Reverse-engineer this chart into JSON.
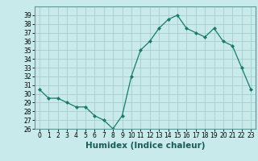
{
  "x": [
    0,
    1,
    2,
    3,
    4,
    5,
    6,
    7,
    8,
    9,
    10,
    11,
    12,
    13,
    14,
    15,
    16,
    17,
    18,
    19,
    20,
    21,
    22,
    23
  ],
  "y": [
    30.5,
    29.5,
    29.5,
    29.0,
    28.5,
    28.5,
    27.5,
    27.0,
    26.0,
    27.5,
    32.0,
    35.0,
    36.0,
    37.5,
    38.5,
    39.0,
    37.5,
    37.0,
    36.5,
    37.5,
    36.0,
    35.5,
    33.0,
    30.5
  ],
  "xlabel": "Humidex (Indice chaleur)",
  "xlim": [
    -0.5,
    23.5
  ],
  "ylim": [
    26,
    40
  ],
  "yticks": [
    26,
    27,
    28,
    29,
    30,
    31,
    32,
    33,
    34,
    35,
    36,
    37,
    38,
    39
  ],
  "xticks": [
    0,
    1,
    2,
    3,
    4,
    5,
    6,
    7,
    8,
    9,
    10,
    11,
    12,
    13,
    14,
    15,
    16,
    17,
    18,
    19,
    20,
    21,
    22,
    23
  ],
  "xtick_labels": [
    "0",
    "1",
    "2",
    "3",
    "4",
    "5",
    "6",
    "7",
    "8",
    "9",
    "10",
    "11",
    "12",
    "13",
    "14",
    "15",
    "16",
    "17",
    "18",
    "19",
    "20",
    "21",
    "22",
    "23"
  ],
  "line_color": "#1a7a6e",
  "marker": "D",
  "marker_size": 2.0,
  "bg_color": "#c8eaea",
  "grid_color": "#a8cccc",
  "fig_bg": "#c8eaea",
  "tick_fontsize": 5.5,
  "xlabel_fontsize": 7.5
}
